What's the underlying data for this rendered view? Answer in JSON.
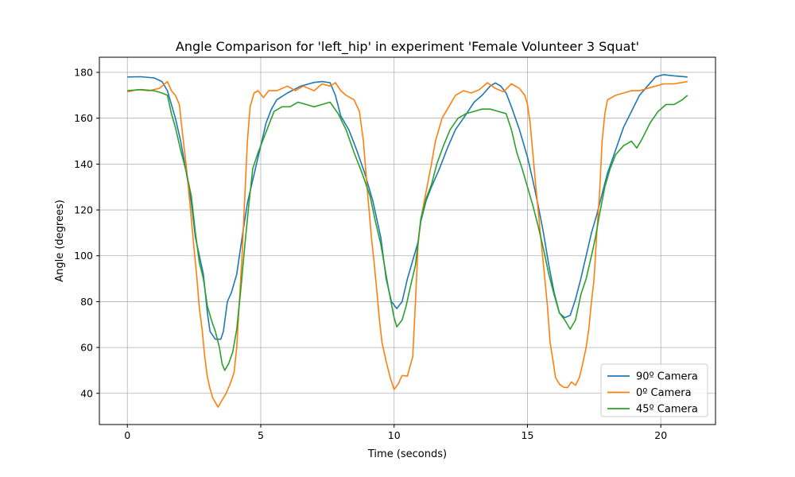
{
  "chart_data": {
    "type": "line",
    "title": "Angle Comparison for 'left_hip' in experiment 'Female Volunteer 3 Squat'",
    "xlabel": "Time (seconds)",
    "ylabel": "Angle (degrees)",
    "xlim": [
      -1.05,
      22.05
    ],
    "ylim": [
      26.4,
      186.6
    ],
    "xticks": [
      0,
      5,
      10,
      15,
      20
    ],
    "yticks": [
      40,
      60,
      80,
      100,
      120,
      140,
      160,
      180
    ],
    "grid": true,
    "legend_position": "lower right",
    "series": [
      {
        "name": "90º Camera",
        "color": "#1f77b4",
        "points": [
          [
            0,
            178
          ],
          [
            0.5,
            178.1
          ],
          [
            1.0,
            177.6
          ],
          [
            1.3,
            176
          ],
          [
            1.5,
            172
          ],
          [
            1.8,
            160
          ],
          [
            2.0,
            150
          ],
          [
            2.2,
            137
          ],
          [
            2.4,
            123
          ],
          [
            2.55,
            108
          ],
          [
            2.7,
            100
          ],
          [
            2.85,
            92
          ],
          [
            3.0,
            75
          ],
          [
            3.1,
            67
          ],
          [
            3.3,
            63.6
          ],
          [
            3.5,
            63.6
          ],
          [
            3.6,
            67
          ],
          [
            3.75,
            80
          ],
          [
            3.9,
            84
          ],
          [
            4.1,
            92
          ],
          [
            4.3,
            108
          ],
          [
            4.5,
            123
          ],
          [
            4.7,
            133
          ],
          [
            5.0,
            148
          ],
          [
            5.2,
            158
          ],
          [
            5.4,
            164
          ],
          [
            5.6,
            168
          ],
          [
            6.0,
            171
          ],
          [
            6.5,
            174
          ],
          [
            7.0,
            175.6
          ],
          [
            7.3,
            176
          ],
          [
            7.6,
            175.5
          ],
          [
            7.8,
            170
          ],
          [
            8.0,
            161
          ],
          [
            8.3,
            155
          ],
          [
            8.6,
            146
          ],
          [
            8.9,
            136
          ],
          [
            9.2,
            124
          ],
          [
            9.5,
            108
          ],
          [
            9.7,
            90
          ],
          [
            9.9,
            80
          ],
          [
            10.1,
            77
          ],
          [
            10.3,
            80
          ],
          [
            10.5,
            90
          ],
          [
            10.7,
            98
          ],
          [
            10.9,
            106
          ],
          [
            11.0,
            115
          ],
          [
            11.2,
            124
          ],
          [
            11.4,
            130
          ],
          [
            11.7,
            138
          ],
          [
            12.0,
            147
          ],
          [
            12.3,
            155
          ],
          [
            12.6,
            160
          ],
          [
            13.0,
            167
          ],
          [
            13.3,
            170
          ],
          [
            13.6,
            174
          ],
          [
            13.8,
            175.4
          ],
          [
            14.0,
            174
          ],
          [
            14.2,
            171
          ],
          [
            14.4,
            165
          ],
          [
            14.7,
            155
          ],
          [
            15.0,
            143
          ],
          [
            15.2,
            133
          ],
          [
            15.4,
            122
          ],
          [
            15.6,
            110
          ],
          [
            15.8,
            96
          ],
          [
            16.0,
            84
          ],
          [
            16.2,
            75
          ],
          [
            16.4,
            73
          ],
          [
            16.6,
            74
          ],
          [
            16.8,
            81
          ],
          [
            17.0,
            90
          ],
          [
            17.2,
            100
          ],
          [
            17.4,
            110
          ],
          [
            17.6,
            118
          ],
          [
            17.8,
            127
          ],
          [
            18.0,
            136
          ],
          [
            18.3,
            146
          ],
          [
            18.6,
            156
          ],
          [
            18.9,
            163
          ],
          [
            19.2,
            170
          ],
          [
            19.5,
            174
          ],
          [
            19.8,
            178
          ],
          [
            20.1,
            179
          ],
          [
            20.5,
            178.5
          ],
          [
            21.0,
            178
          ]
        ]
      },
      {
        "name": "0º Camera",
        "color": "#ff7f0e",
        "points": [
          [
            0,
            171.5
          ],
          [
            0.4,
            172.5
          ],
          [
            0.8,
            172
          ],
          [
            1.2,
            173
          ],
          [
            1.4,
            175
          ],
          [
            1.5,
            176
          ],
          [
            1.65,
            172
          ],
          [
            1.8,
            170
          ],
          [
            1.95,
            166
          ],
          [
            2.05,
            155
          ],
          [
            2.2,
            140
          ],
          [
            2.35,
            122
          ],
          [
            2.5,
            103
          ],
          [
            2.6,
            91
          ],
          [
            2.7,
            77
          ],
          [
            2.8,
            68
          ],
          [
            2.9,
            56
          ],
          [
            3.0,
            47
          ],
          [
            3.1,
            42
          ],
          [
            3.2,
            38
          ],
          [
            3.3,
            36
          ],
          [
            3.4,
            34
          ],
          [
            3.55,
            37
          ],
          [
            3.7,
            40
          ],
          [
            3.85,
            44
          ],
          [
            4.0,
            49
          ],
          [
            4.1,
            60
          ],
          [
            4.2,
            80
          ],
          [
            4.3,
            100
          ],
          [
            4.4,
            125
          ],
          [
            4.5,
            150
          ],
          [
            4.6,
            165
          ],
          [
            4.75,
            171
          ],
          [
            4.9,
            172
          ],
          [
            5.1,
            169
          ],
          [
            5.3,
            172
          ],
          [
            5.6,
            172
          ],
          [
            6.0,
            174
          ],
          [
            6.3,
            172
          ],
          [
            6.6,
            174
          ],
          [
            7.0,
            172
          ],
          [
            7.3,
            175
          ],
          [
            7.6,
            174
          ],
          [
            7.8,
            175.5
          ],
          [
            8.0,
            172
          ],
          [
            8.2,
            170
          ],
          [
            8.5,
            168
          ],
          [
            8.7,
            163
          ],
          [
            8.85,
            150
          ],
          [
            9.0,
            128
          ],
          [
            9.15,
            108
          ],
          [
            9.25,
            97
          ],
          [
            9.35,
            85
          ],
          [
            9.45,
            72
          ],
          [
            9.55,
            62
          ],
          [
            9.7,
            54
          ],
          [
            9.85,
            47
          ],
          [
            10.0,
            41.7
          ],
          [
            10.15,
            44
          ],
          [
            10.3,
            47.8
          ],
          [
            10.5,
            47.5
          ],
          [
            10.6,
            52
          ],
          [
            10.7,
            56
          ],
          [
            10.8,
            80
          ],
          [
            10.9,
            105
          ],
          [
            11.0,
            116
          ],
          [
            11.2,
            128
          ],
          [
            11.4,
            140
          ],
          [
            11.55,
            150
          ],
          [
            11.8,
            160
          ],
          [
            12.0,
            164
          ],
          [
            12.15,
            167
          ],
          [
            12.3,
            170
          ],
          [
            12.6,
            172
          ],
          [
            12.9,
            171
          ],
          [
            13.2,
            172.5
          ],
          [
            13.5,
            175.5
          ],
          [
            13.8,
            173
          ],
          [
            14.1,
            171.5
          ],
          [
            14.4,
            175
          ],
          [
            14.7,
            173
          ],
          [
            14.9,
            170
          ],
          [
            15.0,
            166
          ],
          [
            15.1,
            158
          ],
          [
            15.2,
            145
          ],
          [
            15.3,
            132
          ],
          [
            15.4,
            120
          ],
          [
            15.5,
            108
          ],
          [
            15.65,
            90
          ],
          [
            15.75,
            78
          ],
          [
            15.85,
            62
          ],
          [
            15.95,
            55
          ],
          [
            16.05,
            47
          ],
          [
            16.2,
            44
          ],
          [
            16.35,
            42.7
          ],
          [
            16.5,
            42.5
          ],
          [
            16.65,
            45
          ],
          [
            16.8,
            43.5
          ],
          [
            16.95,
            47
          ],
          [
            17.05,
            52
          ],
          [
            17.2,
            60
          ],
          [
            17.3,
            68
          ],
          [
            17.4,
            80
          ],
          [
            17.5,
            90
          ],
          [
            17.6,
            110
          ],
          [
            17.7,
            127
          ],
          [
            17.8,
            150
          ],
          [
            17.9,
            162
          ],
          [
            18.0,
            168
          ],
          [
            18.3,
            170
          ],
          [
            18.6,
            171
          ],
          [
            18.9,
            172
          ],
          [
            19.2,
            172
          ],
          [
            19.5,
            173
          ],
          [
            19.8,
            174
          ],
          [
            20.1,
            175
          ],
          [
            20.5,
            175
          ],
          [
            21.0,
            176
          ]
        ]
      },
      {
        "name": "45º Camera",
        "color": "#2ca02c",
        "points": [
          [
            0,
            172
          ],
          [
            0.5,
            172.5
          ],
          [
            1.0,
            172
          ],
          [
            1.3,
            171
          ],
          [
            1.5,
            170
          ],
          [
            1.65,
            162
          ],
          [
            1.8,
            156
          ],
          [
            2.0,
            146
          ],
          [
            2.2,
            137
          ],
          [
            2.4,
            126
          ],
          [
            2.55,
            110
          ],
          [
            2.7,
            97
          ],
          [
            2.85,
            90
          ],
          [
            3.0,
            78
          ],
          [
            3.15,
            72
          ],
          [
            3.3,
            67
          ],
          [
            3.45,
            60
          ],
          [
            3.55,
            53
          ],
          [
            3.65,
            50
          ],
          [
            3.8,
            53
          ],
          [
            3.95,
            58
          ],
          [
            4.1,
            68
          ],
          [
            4.25,
            85
          ],
          [
            4.4,
            104
          ],
          [
            4.55,
            122
          ],
          [
            4.7,
            138
          ],
          [
            4.9,
            145
          ],
          [
            5.1,
            151
          ],
          [
            5.3,
            157
          ],
          [
            5.5,
            163
          ],
          [
            5.8,
            165
          ],
          [
            6.1,
            165
          ],
          [
            6.4,
            167
          ],
          [
            6.7,
            166
          ],
          [
            7.0,
            165
          ],
          [
            7.3,
            166
          ],
          [
            7.6,
            167
          ],
          [
            7.9,
            162
          ],
          [
            8.2,
            155
          ],
          [
            8.5,
            145
          ],
          [
            8.8,
            136
          ],
          [
            9.1,
            126
          ],
          [
            9.3,
            115
          ],
          [
            9.5,
            105
          ],
          [
            9.65,
            95
          ],
          [
            9.8,
            85
          ],
          [
            10.0,
            73
          ],
          [
            10.1,
            69
          ],
          [
            10.3,
            72
          ],
          [
            10.45,
            78
          ],
          [
            10.6,
            86
          ],
          [
            10.8,
            96
          ],
          [
            11.0,
            116
          ],
          [
            11.2,
            125
          ],
          [
            11.4,
            131
          ],
          [
            11.6,
            140
          ],
          [
            11.85,
            148
          ],
          [
            12.1,
            155
          ],
          [
            12.4,
            160
          ],
          [
            12.7,
            162
          ],
          [
            13.0,
            163
          ],
          [
            13.3,
            164
          ],
          [
            13.6,
            164
          ],
          [
            13.9,
            163
          ],
          [
            14.2,
            162
          ],
          [
            14.4,
            155
          ],
          [
            14.6,
            145
          ],
          [
            14.8,
            138
          ],
          [
            15.0,
            130
          ],
          [
            15.2,
            122
          ],
          [
            15.4,
            113
          ],
          [
            15.6,
            103
          ],
          [
            15.8,
            92
          ],
          [
            16.0,
            83
          ],
          [
            16.2,
            75
          ],
          [
            16.4,
            72
          ],
          [
            16.6,
            68
          ],
          [
            16.8,
            72
          ],
          [
            17.0,
            83
          ],
          [
            17.2,
            90
          ],
          [
            17.4,
            100
          ],
          [
            17.55,
            108
          ],
          [
            17.7,
            118
          ],
          [
            17.9,
            130
          ],
          [
            18.1,
            138
          ],
          [
            18.3,
            144
          ],
          [
            18.6,
            148
          ],
          [
            18.9,
            150
          ],
          [
            19.1,
            147
          ],
          [
            19.3,
            151
          ],
          [
            19.6,
            158
          ],
          [
            19.9,
            163
          ],
          [
            20.2,
            166
          ],
          [
            20.5,
            166
          ],
          [
            20.8,
            168
          ],
          [
            21.0,
            170
          ]
        ]
      }
    ]
  }
}
